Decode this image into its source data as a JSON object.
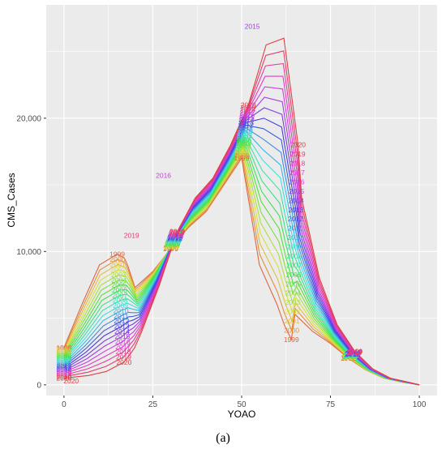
{
  "chart_data": {
    "type": "line",
    "title": "",
    "xlabel": "YOAO",
    "ylabel": "CMS_Cases",
    "panel_label": "(a)",
    "xlim": [
      -5,
      105
    ],
    "ylim": [
      -800,
      28500
    ],
    "x_ticks": [
      0,
      25,
      50,
      75,
      100
    ],
    "x_tick_labels": [
      "0",
      "25",
      "50",
      "75",
      "100"
    ],
    "y_ticks": [
      0,
      10000,
      20000
    ],
    "y_tick_labels": [
      "0",
      "10,000",
      "20,000"
    ],
    "grid": true,
    "legend": "none",
    "series_label_source": "year",
    "years": [
      1999,
      2000,
      2001,
      2002,
      2003,
      2004,
      2005,
      2006,
      2007,
      2008,
      2009,
      2010,
      2011,
      2012,
      2013,
      2014,
      2015,
      2016,
      2017,
      2018,
      2019,
      2020
    ],
    "year_labels": [
      "1999",
      "2000",
      "2001",
      "2002",
      "2003",
      "2004",
      "2005",
      "2006",
      "2007",
      "2008",
      "2009",
      "2010",
      "2011",
      "2012",
      "2013",
      "2014",
      "2015",
      "2016",
      "2017",
      "2018",
      "2019",
      "2020"
    ],
    "series_template": {
      "x": [
        0,
        5,
        10,
        15,
        17,
        18,
        20,
        25,
        30,
        35,
        40,
        45,
        50,
        55,
        60,
        62,
        64,
        65,
        70,
        75,
        80,
        85,
        90,
        95,
        100
      ],
      "y_1999": [
        2800,
        6000,
        9000,
        9800,
        9500,
        8900,
        7300,
        8500,
        10200,
        11800,
        13000,
        15000,
        17000,
        9000,
        6000,
        4500,
        3400,
        5300,
        4000,
        3100,
        2000,
        1100,
        500,
        200,
        0
      ],
      "y_2020": [
        500,
        700,
        1000,
        1700,
        2400,
        2800,
        4000,
        7500,
        11500,
        14000,
        15500,
        18000,
        21000,
        25500,
        26000,
        22000,
        18000,
        14000,
        8000,
        4500,
        2500,
        1200,
        500,
        200,
        0
      ]
    },
    "peak_year_labels": [
      {
        "year": "2015",
        "x": 53,
        "y": 26900
      },
      {
        "year": "2016",
        "x": 28,
        "y": 15700
      },
      {
        "year": "2019",
        "x": 19,
        "y": 11200
      },
      {
        "year": "2020",
        "x": 2,
        "y": 300
      }
    ]
  },
  "colors": {
    "panel_background": "#ebebeb",
    "grid": "#ffffff",
    "palette_start_hue": 15,
    "palette_end_hue": 375
  }
}
